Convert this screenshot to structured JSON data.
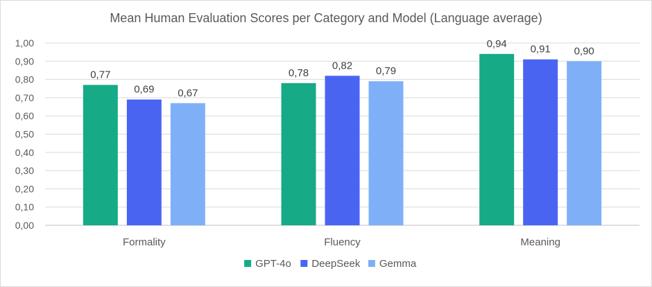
{
  "chart_data": {
    "type": "bar",
    "title": "Mean Human Evaluation Scores per Category and Model (Language average)",
    "categories": [
      "Formality",
      "Fluency",
      "Meaning"
    ],
    "series": [
      {
        "name": "GPT-4o",
        "color": "#16ab86",
        "values": [
          0.77,
          0.78,
          0.94
        ],
        "labels": [
          "0,77",
          "0,78",
          "0,94"
        ]
      },
      {
        "name": "DeepSeek",
        "color": "#4a64f2",
        "values": [
          0.69,
          0.82,
          0.91
        ],
        "labels": [
          "0,69",
          "0,82",
          "0,91"
        ]
      },
      {
        "name": "Gemma",
        "color": "#7fb0f7",
        "values": [
          0.67,
          0.79,
          0.9
        ],
        "labels": [
          "0,67",
          "0,79",
          "0,90"
        ]
      }
    ],
    "ylim": [
      0,
      1
    ],
    "yticks": [
      0,
      0.1,
      0.2,
      0.3,
      0.4,
      0.5,
      0.6,
      0.7,
      0.8,
      0.9,
      1.0
    ],
    "ytick_labels": [
      "0,00",
      "0,10",
      "0,20",
      "0,30",
      "0,40",
      "0,50",
      "0,60",
      "0,70",
      "0,80",
      "0,90",
      "1,00"
    ],
    "grid": true,
    "legend_position": "bottom",
    "xlabel": "",
    "ylabel": ""
  }
}
